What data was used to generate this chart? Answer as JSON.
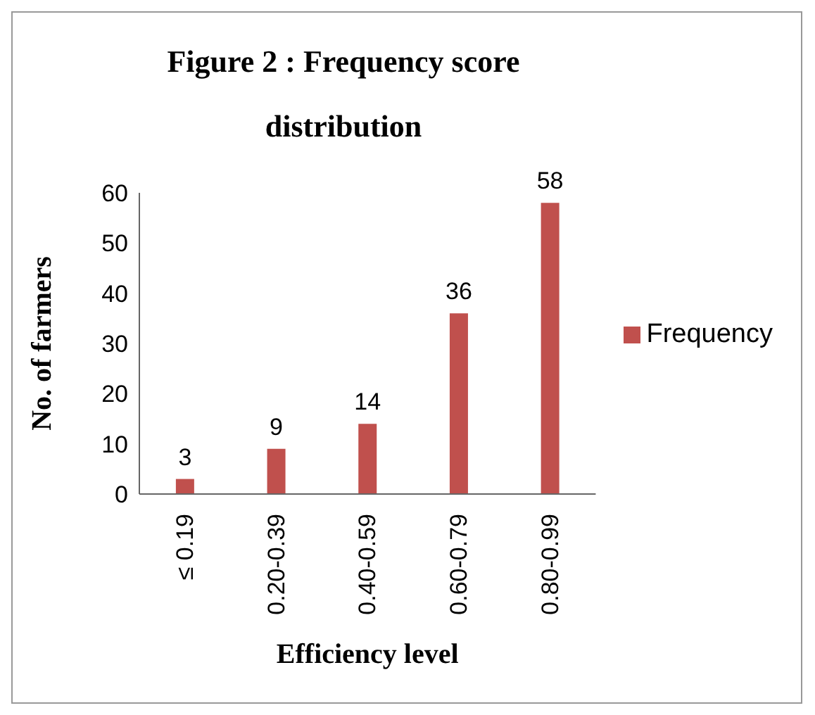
{
  "chart_data": {
    "type": "bar",
    "title": "Figure 2 : Frequency score distribution",
    "xlabel": "Efficiency level",
    "ylabel": "No. of farmers",
    "categories": [
      "≤ 0.19",
      "0.20-0.39",
      "0.40-0.59",
      "0.60-0.79",
      "0.80-0.99"
    ],
    "series": [
      {
        "name": "Frequency",
        "color": "#c0504d",
        "values": [
          3,
          9,
          14,
          36,
          58
        ]
      }
    ],
    "ylim": [
      0,
      60
    ],
    "yticks": [
      0,
      10,
      20,
      30,
      40,
      50,
      60
    ],
    "data_labels": true,
    "legend": "right"
  }
}
